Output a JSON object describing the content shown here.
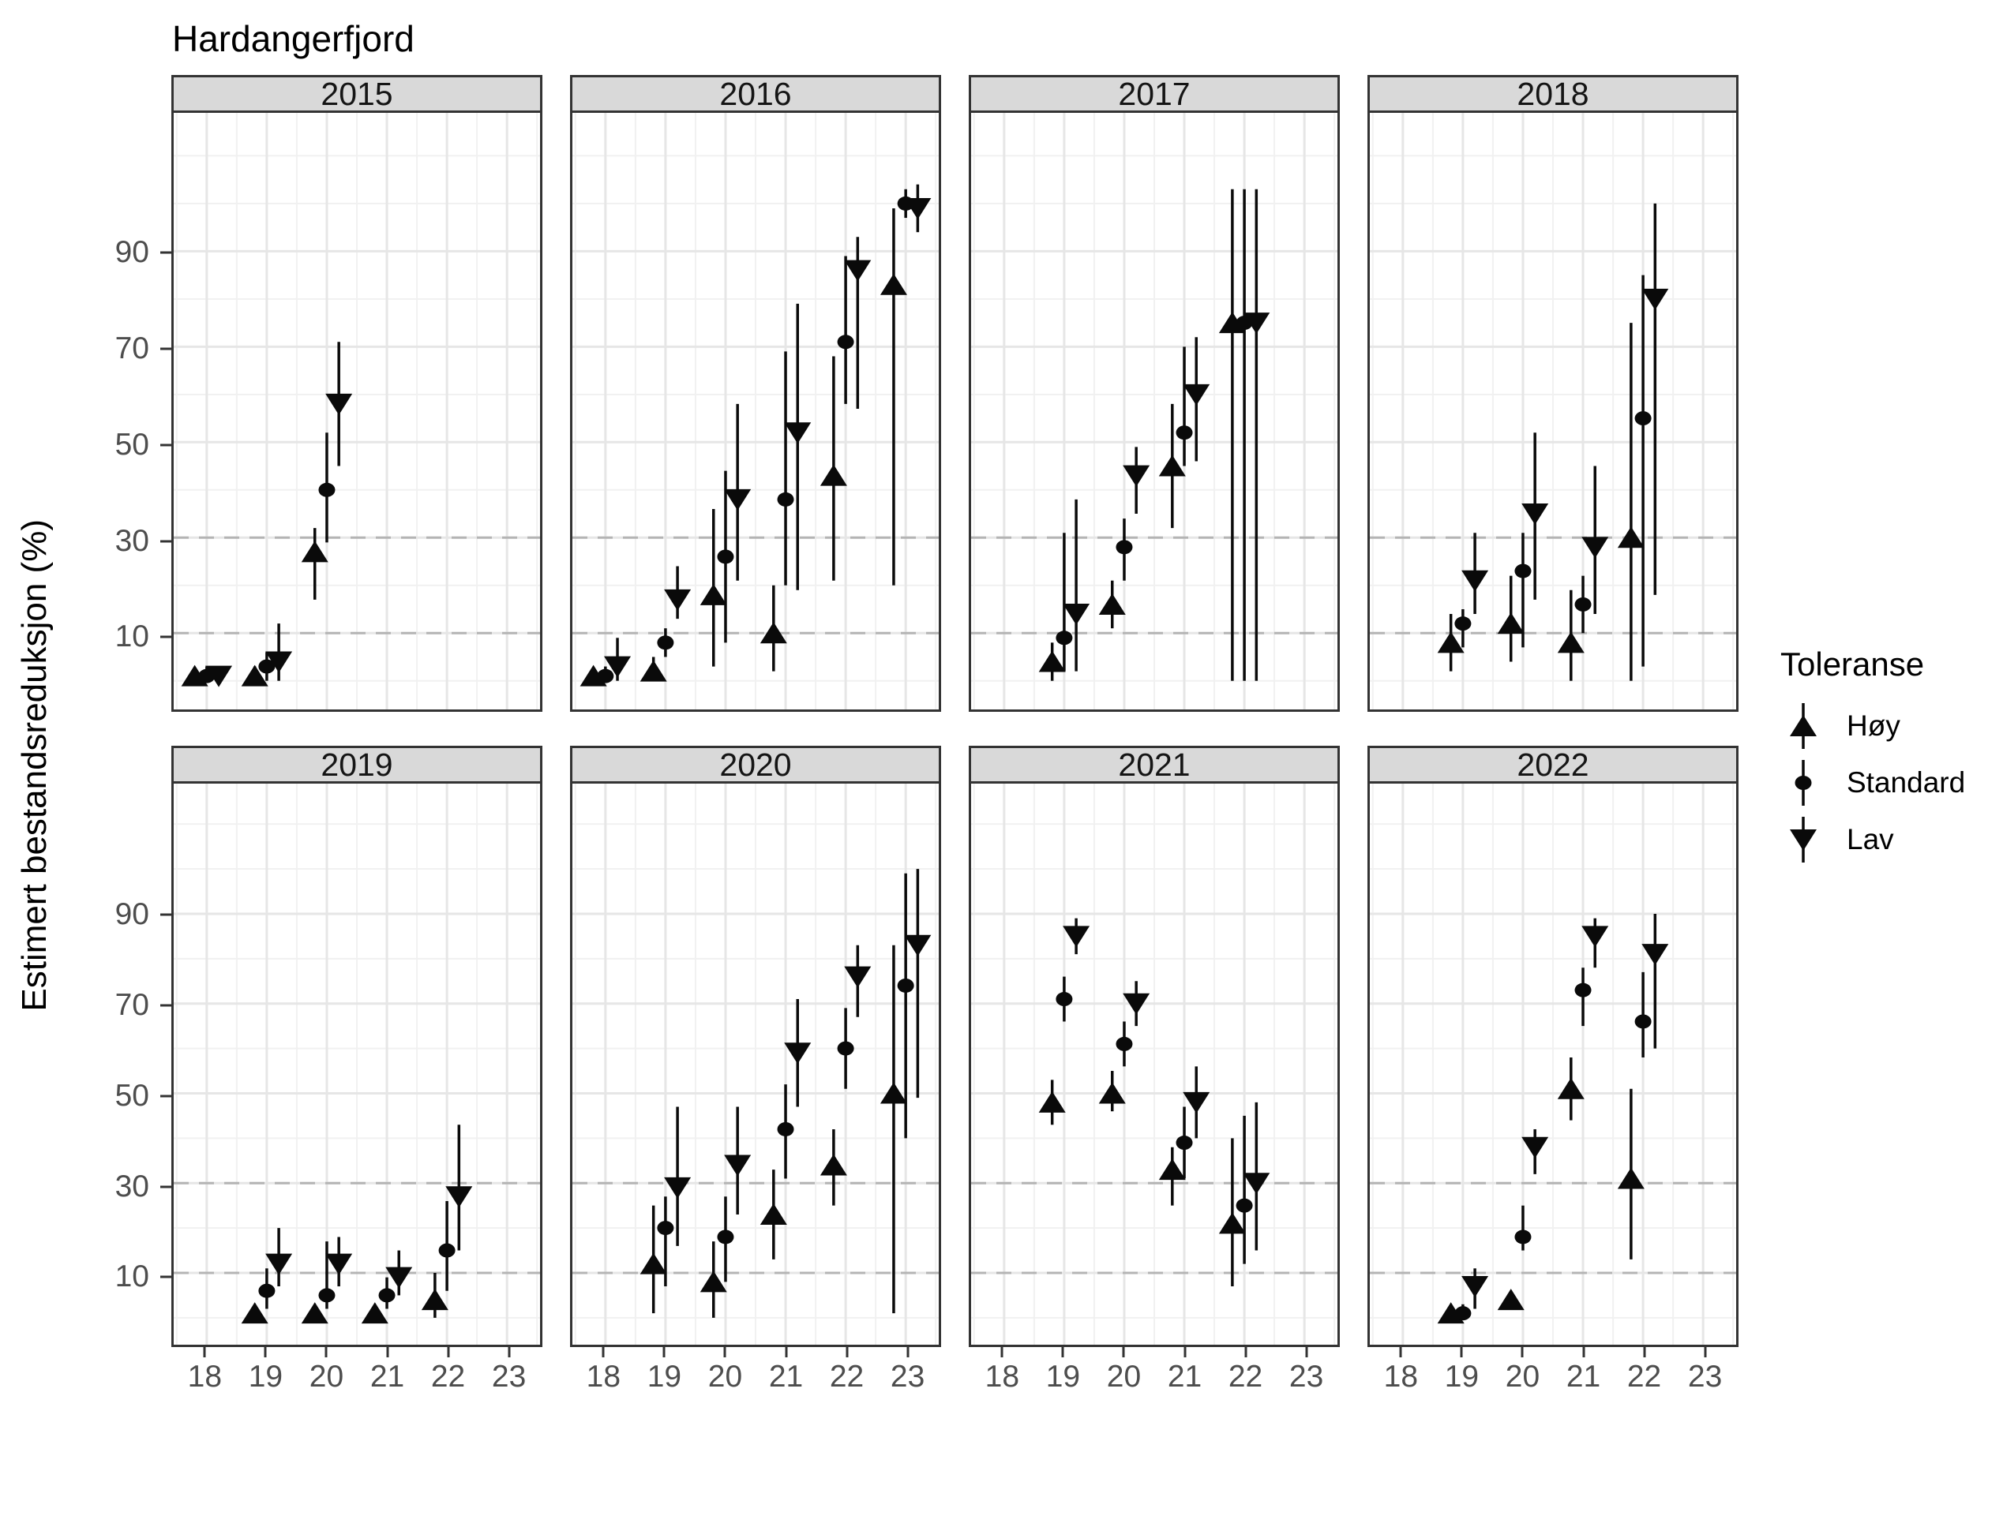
{
  "chart_data": {
    "type": "scatter",
    "title": "Hardangerfjord",
    "ylabel": "Estimert bestandsreduksjon (%)",
    "grid": "on",
    "x_range": [
      17.45,
      23.55
    ],
    "y_range": [
      -6,
      119
    ],
    "x_ticks": [
      {
        "label": "18",
        "value": 18
      },
      {
        "label": "19",
        "value": 19
      },
      {
        "label": "20",
        "value": 20
      },
      {
        "label": "21",
        "value": 21
      },
      {
        "label": "22",
        "value": 22
      },
      {
        "label": "23",
        "value": 23
      }
    ],
    "y_ticks": [
      {
        "label": "90",
        "value": 90
      },
      {
        "label": "70",
        "value": 70
      },
      {
        "label": "50",
        "value": 50
      },
      {
        "label": "30",
        "value": 30
      },
      {
        "label": "10",
        "value": 10
      }
    ],
    "hlines_dashed": [
      30,
      10
    ],
    "dodge": {
      "hoy": -0.2,
      "standard": 0,
      "lav": 0.2
    },
    "legend": {
      "title": "Toleranse",
      "position": "right",
      "entries": [
        {
          "key": "hoy",
          "label": "Høy",
          "symbol": "triangle-up"
        },
        {
          "key": "standard",
          "label": "Standard",
          "symbol": "circle"
        },
        {
          "key": "lav",
          "label": "Lav",
          "symbol": "triangle-down"
        }
      ]
    },
    "colors": {
      "marker": "#0a0a0a",
      "panel_border": "#333333",
      "strip_bg": "#d9d9d9",
      "grid_major": "#e6e6e6",
      "grid_minor": "#f1f1f1",
      "hline_dashed": "#b4b4b4",
      "axis_text": "#4d4d4d"
    },
    "facets": [
      {
        "year": "2015",
        "row": 0,
        "points": [
          {
            "x": 18,
            "hoy": [
              1,
              0,
              2
            ],
            "standard": [
              1,
              0,
              3
            ],
            "lav": [
              1,
              0,
              3
            ]
          },
          {
            "x": 19,
            "hoy": [
              1,
              0,
              3
            ],
            "standard": [
              3,
              0,
              6
            ],
            "lav": [
              4,
              0,
              12
            ]
          },
          {
            "x": 20,
            "hoy": [
              27,
              17,
              32
            ],
            "standard": [
              40,
              29,
              52
            ],
            "lav": [
              58,
              45,
              71
            ]
          }
        ]
      },
      {
        "year": "2016",
        "row": 0,
        "points": [
          {
            "x": 18,
            "hoy": [
              1,
              0,
              2
            ],
            "standard": [
              1,
              0,
              3
            ],
            "lav": [
              3,
              0,
              9
            ]
          },
          {
            "x": 19,
            "hoy": [
              2,
              0,
              5
            ],
            "standard": [
              8,
              5,
              11
            ],
            "lav": [
              17,
              13,
              24
            ]
          },
          {
            "x": 20,
            "hoy": [
              18,
              3,
              36
            ],
            "standard": [
              26,
              8,
              44
            ],
            "lav": [
              38,
              21,
              58
            ]
          },
          {
            "x": 21,
            "hoy": [
              10,
              2,
              20
            ],
            "standard": [
              38,
              20,
              69
            ],
            "lav": [
              52,
              19,
              79
            ]
          },
          {
            "x": 22,
            "hoy": [
              43,
              21,
              68
            ],
            "standard": [
              71,
              58,
              89
            ],
            "lav": [
              86,
              57,
              93
            ]
          },
          {
            "x": 23,
            "hoy": [
              83,
              20,
              99
            ],
            "standard": [
              100,
              97,
              103
            ],
            "lav": [
              99,
              94,
              104
            ]
          }
        ]
      },
      {
        "year": "2017",
        "row": 0,
        "points": [
          {
            "x": 19,
            "hoy": [
              4,
              0,
              8
            ],
            "standard": [
              9,
              2,
              31
            ],
            "lav": [
              14,
              2,
              38
            ]
          },
          {
            "x": 20,
            "hoy": [
              16,
              11,
              21
            ],
            "standard": [
              28,
              21,
              34
            ],
            "lav": [
              43,
              35,
              49
            ]
          },
          {
            "x": 21,
            "hoy": [
              45,
              32,
              58
            ],
            "standard": [
              52,
              45,
              70
            ],
            "lav": [
              60,
              46,
              72
            ]
          },
          {
            "x": 22,
            "hoy": [
              75,
              0,
              103
            ],
            "standard": [
              75,
              0,
              103
            ],
            "lav": [
              75,
              0,
              103
            ]
          }
        ]
      },
      {
        "year": "2018",
        "row": 0,
        "points": [
          {
            "x": 19,
            "hoy": [
              8,
              2,
              14
            ],
            "standard": [
              12,
              7,
              15
            ],
            "lav": [
              21,
              14,
              31
            ]
          },
          {
            "x": 20,
            "hoy": [
              12,
              4,
              22
            ],
            "standard": [
              23,
              7,
              31
            ],
            "lav": [
              35,
              17,
              52
            ]
          },
          {
            "x": 21,
            "hoy": [
              8,
              0,
              19
            ],
            "standard": [
              16,
              10,
              22
            ],
            "lav": [
              28,
              14,
              45
            ]
          },
          {
            "x": 22,
            "hoy": [
              30,
              0,
              75
            ],
            "standard": [
              55,
              3,
              85
            ],
            "lav": [
              80,
              18,
              100
            ]
          }
        ]
      },
      {
        "year": "2019",
        "row": 1,
        "points": [
          {
            "x": 19,
            "hoy": [
              1,
              0,
              3
            ],
            "standard": [
              6,
              2,
              11
            ],
            "lav": [
              12,
              7,
              20
            ]
          },
          {
            "x": 20,
            "hoy": [
              1,
              0,
              3
            ],
            "standard": [
              5,
              2,
              17
            ],
            "lav": [
              12,
              7,
              18
            ]
          },
          {
            "x": 21,
            "hoy": [
              1,
              0,
              3
            ],
            "standard": [
              5,
              2,
              9
            ],
            "lav": [
              9,
              5,
              15
            ]
          },
          {
            "x": 22,
            "hoy": [
              4,
              0,
              10
            ],
            "standard": [
              15,
              6,
              26
            ],
            "lav": [
              27,
              15,
              43
            ]
          }
        ]
      },
      {
        "year": "2020",
        "row": 1,
        "points": [
          {
            "x": 19,
            "hoy": [
              12,
              1,
              25
            ],
            "standard": [
              20,
              7,
              27
            ],
            "lav": [
              29,
              16,
              47
            ]
          },
          {
            "x": 20,
            "hoy": [
              8,
              0,
              17
            ],
            "standard": [
              18,
              8,
              27
            ],
            "lav": [
              34,
              23,
              47
            ]
          },
          {
            "x": 21,
            "hoy": [
              23,
              13,
              33
            ],
            "standard": [
              42,
              31,
              52
            ],
            "lav": [
              59,
              47,
              71
            ]
          },
          {
            "x": 22,
            "hoy": [
              34,
              25,
              42
            ],
            "standard": [
              60,
              51,
              69
            ],
            "lav": [
              76,
              67,
              83
            ]
          },
          {
            "x": 23,
            "hoy": [
              50,
              1,
              83
            ],
            "standard": [
              74,
              40,
              99
            ],
            "lav": [
              83,
              49,
              100
            ]
          }
        ]
      },
      {
        "year": "2021",
        "row": 1,
        "points": [
          {
            "x": 19,
            "hoy": [
              48,
              43,
              53
            ],
            "standard": [
              71,
              66,
              76
            ],
            "lav": [
              85,
              81,
              89
            ]
          },
          {
            "x": 20,
            "hoy": [
              50,
              46,
              55
            ],
            "standard": [
              61,
              56,
              66
            ],
            "lav": [
              70,
              65,
              75
            ]
          },
          {
            "x": 21,
            "hoy": [
              33,
              25,
              38
            ],
            "standard": [
              39,
              31,
              47
            ],
            "lav": [
              48,
              40,
              56
            ]
          },
          {
            "x": 22,
            "hoy": [
              21,
              7,
              40
            ],
            "standard": [
              25,
              12,
              45
            ],
            "lav": [
              30,
              15,
              48
            ]
          }
        ]
      },
      {
        "year": "2022",
        "row": 1,
        "points": [
          {
            "x": 19,
            "hoy": [
              1,
              0,
              2
            ],
            "standard": [
              1,
              0,
              3
            ],
            "lav": [
              7,
              2,
              11
            ]
          },
          {
            "x": 20,
            "hoy": [
              4,
              2,
              6
            ],
            "standard": [
              18,
              15,
              25
            ],
            "lav": [
              38,
              32,
              42
            ]
          },
          {
            "x": 21,
            "hoy": [
              51,
              44,
              58
            ],
            "standard": [
              73,
              65,
              78
            ],
            "lav": [
              85,
              78,
              89
            ]
          },
          {
            "x": 22,
            "hoy": [
              31,
              13,
              51
            ],
            "standard": [
              66,
              58,
              77
            ],
            "lav": [
              81,
              60,
              90
            ]
          }
        ]
      }
    ]
  }
}
